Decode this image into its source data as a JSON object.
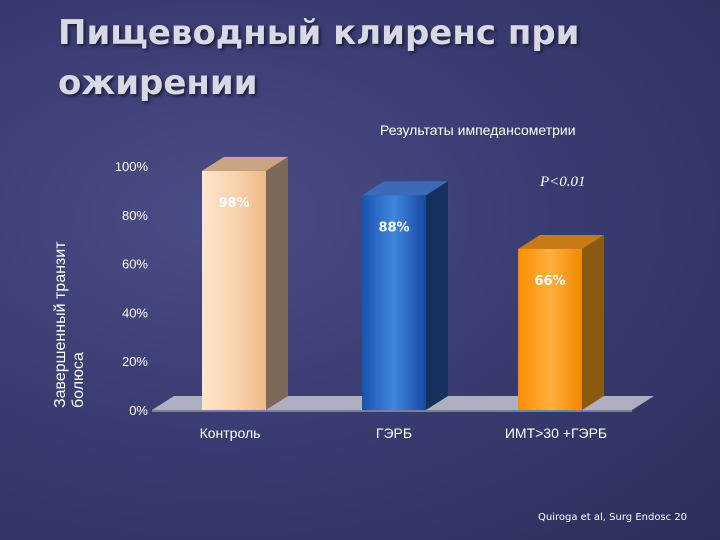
{
  "slide": {
    "title": "Пищеводный клиренс при ожирении",
    "citation": "Quiroga et al, Surg Endosc 20"
  },
  "chart_data": {
    "type": "bar",
    "title": "Результаты импедансометрии",
    "annotation": "P<0.01",
    "ylabel": "Завершенный транзит болюса",
    "ylim": [
      0,
      100
    ],
    "yticks": [
      "0%",
      "20%",
      "40%",
      "60%",
      "80%",
      "100%"
    ],
    "categories": [
      "Контроль",
      "ГЭРБ",
      "ИМТ>30 +ГЭРБ"
    ],
    "values": [
      98,
      88,
      66
    ],
    "value_labels": [
      "98%",
      "88%",
      "66%"
    ],
    "grid": false,
    "colors": {
      "bar1": "#f7cba0",
      "bar2": "#2a66c4",
      "bar3": "#ff9a12",
      "floor": "#b8bac9",
      "label": "#ffffff"
    }
  }
}
